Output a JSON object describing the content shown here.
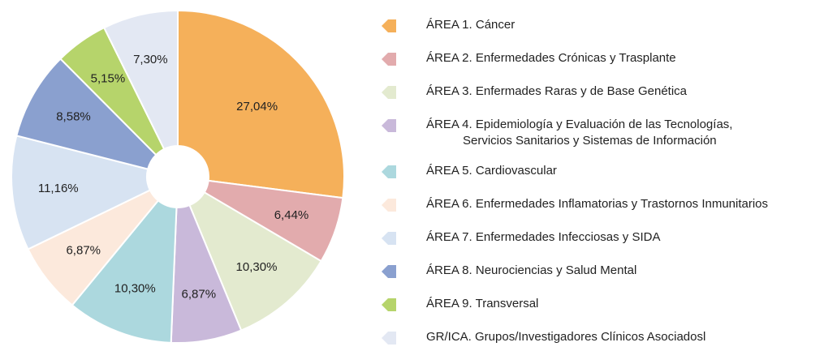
{
  "chart_data": {
    "type": "pie",
    "categories": [
      "ÁREA 1. Cáncer",
      "ÁREA 2. Enfermedades Crónicas y Trasplante",
      "ÁREA 3. Enfermades Raras y de Base Genética",
      "ÁREA 4. Epidemiología y Evaluación de las Tecnologías,\nServicios Sanitarios y Sistemas de Información",
      "ÁREA 5. Cardiovascular",
      "ÁREA 6. Enfermedades Inflamatorias y Trastornos Inmunitarios",
      "ÁREA 7. Enfermedades Infecciosas y SIDA",
      "ÁREA 8. Neurociencias y Salud Mental",
      "ÁREA 9. Transversal",
      "GR/ICA. Grupos/Investigadores Clínicos Asociadosl"
    ],
    "values": [
      27.04,
      6.44,
      10.3,
      6.87,
      10.3,
      6.87,
      11.16,
      8.58,
      5.15,
      7.3
    ],
    "value_labels": [
      "27,04%",
      "6,44%",
      "10,30%",
      "6,87%",
      "10,30%",
      "6,87%",
      "11,16%",
      "8,58%",
      "5,15%",
      "7,30%"
    ],
    "colors": [
      "#f5b05a",
      "#e2abad",
      "#e3eacf",
      "#c9b9da",
      "#acd8de",
      "#fce9dc",
      "#d7e3f2",
      "#8aa0cf",
      "#b6d46b",
      "#e3e8f3"
    ],
    "legend": "right"
  }
}
